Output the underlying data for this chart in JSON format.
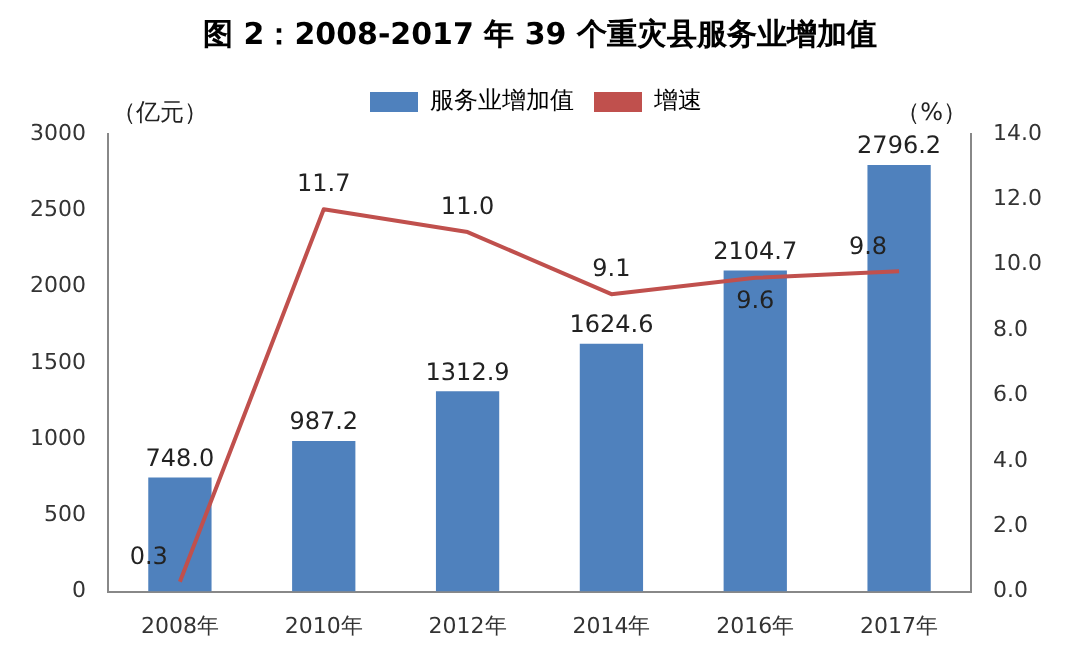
{
  "chart_data": {
    "type": "bar",
    "title": "图 2：2008-2017 年 39 个重灾县服务业增加值",
    "ylabel": "（亿元）",
    "y2label": "（%）",
    "categories": [
      "2008年",
      "2010年",
      "2012年",
      "2014年",
      "2016年",
      "2017年"
    ],
    "series": [
      {
        "name": "服务业增加值",
        "color": "#4f81bd",
        "values": [
          748.0,
          987.2,
          1312.9,
          1624.6,
          2104.7,
          2796.2
        ],
        "value_labels": [
          "748.0",
          "987.2",
          "1312.9",
          "1624.6",
          "2104.7",
          "2796.2"
        ]
      },
      {
        "name": "增速",
        "type": "line",
        "axis": "y2",
        "color": "#c0504d",
        "values": [
          0.3,
          11.7,
          11.0,
          9.1,
          9.6,
          9.8
        ],
        "value_labels": [
          "0.3",
          "11.7",
          "11.0",
          "9.1",
          "9.6",
          "9.8"
        ]
      }
    ],
    "ylim": [
      0,
      3000
    ],
    "yticks": [
      0,
      500,
      1000,
      1500,
      2000,
      2500,
      3000
    ],
    "y2lim": [
      0,
      14
    ],
    "y2ticks": [
      {
        "value": 0,
        "label": "0.0"
      },
      {
        "value": 2,
        "label": "2.0"
      },
      {
        "value": 4,
        "label": "4.0"
      },
      {
        "value": 6,
        "label": "6.0"
      },
      {
        "value": 8,
        "label": "8.0"
      },
      {
        "value": 10,
        "label": "10.0"
      },
      {
        "value": 12,
        "label": "12.0"
      },
      {
        "value": 14,
        "label": "14.0"
      }
    ],
    "grid": false,
    "legend": "top",
    "marker": "none",
    "line_style": "solid"
  }
}
